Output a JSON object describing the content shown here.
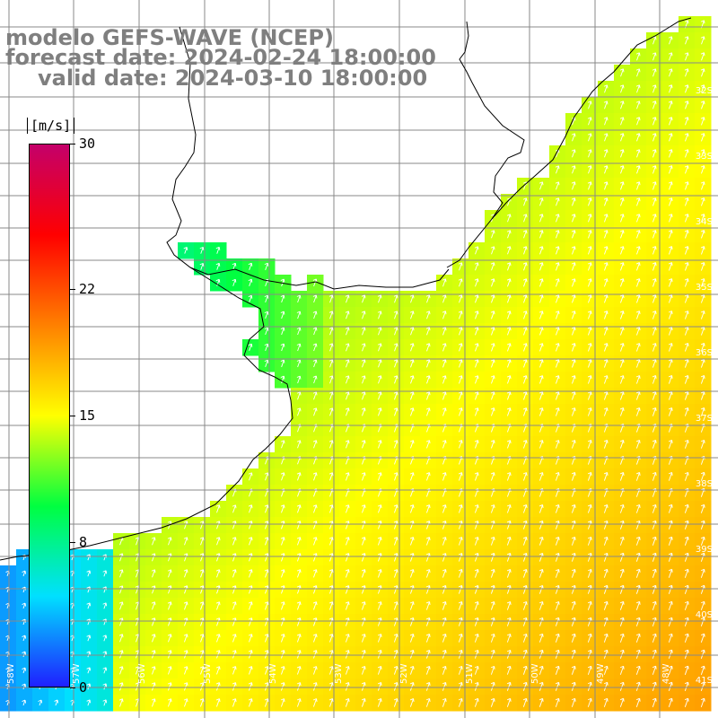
{
  "title": {
    "line1": "modelo GEFS-WAVE (NCEP)",
    "line2": "forecast date: 2024-02-24 18:00:00",
    "line3": "valid date: 2024-03-10 18:00:00"
  },
  "colorbar": {
    "unit": "[m/s]",
    "stops": [
      "#1f1fff",
      "#00e0ff",
      "#00ff40",
      "#ffff00",
      "#ff8000",
      "#ff0000",
      "#c4006a"
    ],
    "labels": [
      {
        "text": "30",
        "value": 30
      },
      {
        "text": "22",
        "value": 22
      },
      {
        "text": "15",
        "value": 15
      },
      {
        "text": "8",
        "value": 8
      },
      {
        "text": "0",
        "value": 0
      }
    ],
    "range": [
      0,
      30
    ]
  },
  "map": {
    "land_color": "#ffffff",
    "coast_color": "#000000",
    "grid_color": "#888888",
    "arrow_color": "#ffffff",
    "lat_labels": [
      "32S",
      "33S",
      "34S",
      "35S",
      "36S",
      "37S",
      "38S",
      "39S",
      "40S",
      "41S"
    ],
    "lon_labels": [
      "58W",
      "57W",
      "56W",
      "55W",
      "54W",
      "53W",
      "52W",
      "51W",
      "50W",
      "49W",
      "48W"
    ]
  }
}
